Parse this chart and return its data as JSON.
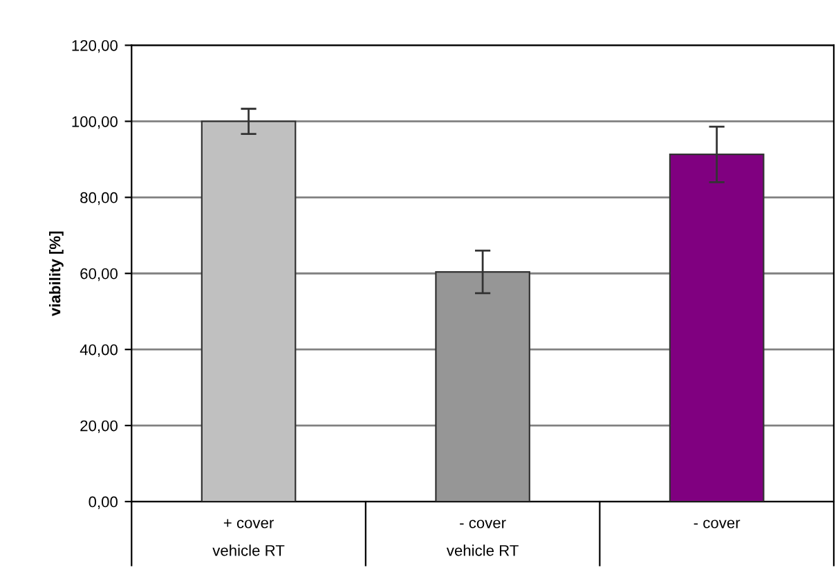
{
  "chart_data": {
    "type": "bar",
    "ylabel": "viability [%]",
    "categories": [
      "+ cover\nvehicle RT",
      "- cover\nvehicle RT",
      "- cover"
    ],
    "values": [
      100,
      60.4,
      91.3
    ],
    "errors": [
      3.3,
      5.6,
      7.3
    ],
    "colors": [
      "#c0c0c0",
      "#969696",
      "#800080"
    ],
    "ylim": [
      0,
      120
    ],
    "yticks": [
      {
        "value": 0,
        "label": "0,00"
      },
      {
        "value": 20,
        "label": "20,00"
      },
      {
        "value": 40,
        "label": "40,00"
      },
      {
        "value": 60,
        "label": "60,00"
      },
      {
        "value": 80,
        "label": "80,00"
      },
      {
        "value": 100,
        "label": "100,00"
      },
      {
        "value": 120,
        "label": "120,00"
      }
    ],
    "grid": "y"
  }
}
